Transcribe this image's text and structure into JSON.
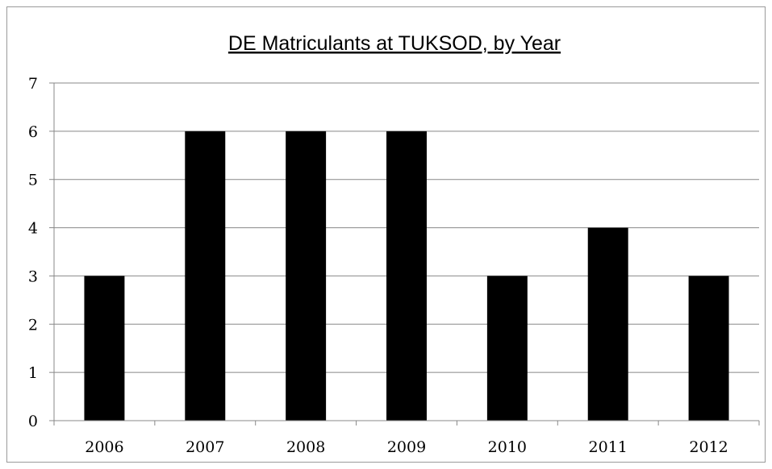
{
  "chart_data": {
    "type": "bar",
    "title": "DE Matriculants at TUKSOD, by Year",
    "xlabel": "",
    "ylabel": "",
    "categories": [
      "2006",
      "2007",
      "2008",
      "2009",
      "2010",
      "2011",
      "2012"
    ],
    "values": [
      3,
      6,
      6,
      6,
      3,
      4,
      3
    ],
    "ylim": [
      0,
      7
    ],
    "yticks": [
      "0",
      "1",
      "2",
      "3",
      "4",
      "5",
      "6",
      "7"
    ],
    "grid": true,
    "legend": "none",
    "bar_color": "#000000",
    "grid_color": "#888888"
  }
}
